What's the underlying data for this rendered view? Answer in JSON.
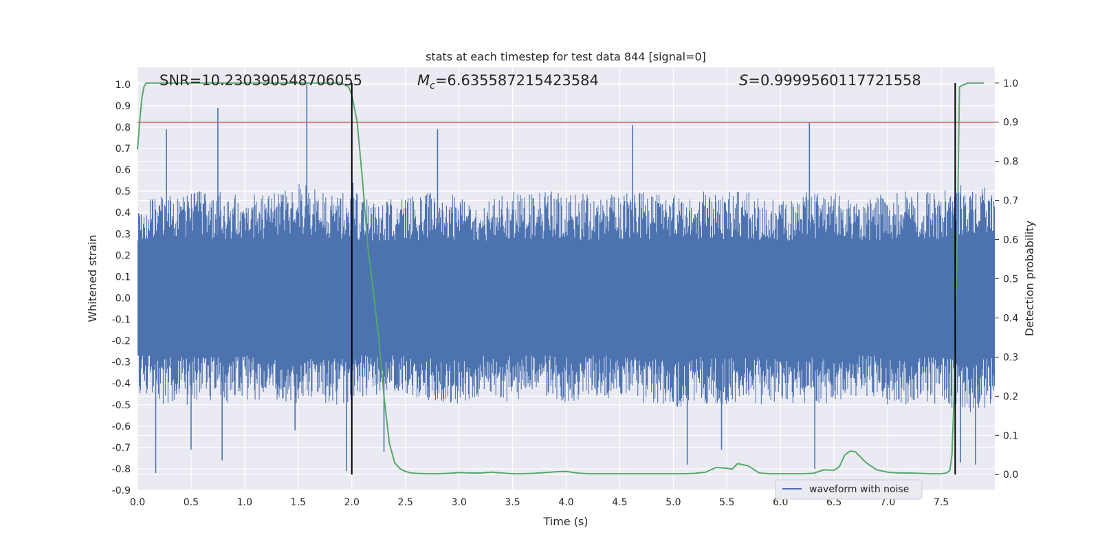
{
  "chart_data": {
    "type": "line",
    "title": "stats at each timestep for test data 844 [signal=0]",
    "xlabel": "Time (s)",
    "ylabel": "Whitened strain",
    "y2label": "Detection probability",
    "xlim": [
      0.0,
      8.0
    ],
    "ylim": [
      -0.9,
      1.08
    ],
    "y2lim": [
      -0.04,
      1.04
    ],
    "x_ticks": [
      "0.0",
      "0.5",
      "1.0",
      "1.5",
      "2.0",
      "2.5",
      "3.0",
      "3.5",
      "4.0",
      "4.5",
      "5.0",
      "5.5",
      "6.0",
      "6.5",
      "7.0",
      "7.5"
    ],
    "y_ticks": [
      "-0.9",
      "-0.8",
      "-0.7",
      "-0.6",
      "-0.5",
      "-0.4",
      "-0.3",
      "-0.2",
      "-0.1",
      "0.0",
      "0.1",
      "0.2",
      "0.3",
      "0.4",
      "0.5",
      "0.6",
      "0.7",
      "0.8",
      "0.9",
      "1.0"
    ],
    "y2_ticks": [
      "0.0",
      "0.1",
      "0.2",
      "0.3",
      "0.4",
      "0.5",
      "0.6",
      "0.7",
      "0.8",
      "0.9",
      "1.0"
    ],
    "grid": true,
    "annotations": {
      "snr": "SNR=10.230390548706055",
      "mc_symbol": "M",
      "mc_sub": "c",
      "mc_value": "=6.635587215423584",
      "s_symbol": "S",
      "s_value": "=0.9999560117721558"
    },
    "legend": {
      "placement": "lower-right",
      "entries": [
        "waveform with noise"
      ]
    },
    "threshold_prob": 0.9,
    "vertical_lines_x": [
      2.0,
      7.63
    ],
    "waveform_envelope": {
      "x": [
        0.0,
        0.25,
        0.5,
        0.75,
        1.0,
        1.25,
        1.5,
        1.75,
        2.0,
        2.25,
        2.5,
        2.75,
        3.0,
        3.25,
        3.5,
        3.75,
        4.0,
        4.25,
        4.5,
        4.75,
        5.0,
        5.25,
        5.5,
        5.75,
        6.0,
        6.25,
        6.5,
        6.75,
        7.0,
        7.25,
        7.5,
        7.75,
        8.0
      ],
      "typical_max": [
        0.45,
        0.5,
        0.5,
        0.5,
        0.48,
        0.5,
        0.55,
        0.5,
        0.5,
        0.45,
        0.48,
        0.5,
        0.48,
        0.45,
        0.5,
        0.5,
        0.5,
        0.48,
        0.5,
        0.5,
        0.48,
        0.5,
        0.5,
        0.5,
        0.45,
        0.5,
        0.5,
        0.45,
        0.5,
        0.5,
        0.5,
        0.55,
        0.55
      ],
      "typical_min": [
        -0.45,
        -0.5,
        -0.5,
        -0.5,
        -0.48,
        -0.5,
        -0.5,
        -0.5,
        -0.5,
        -0.45,
        -0.45,
        -0.5,
        -0.5,
        -0.45,
        -0.5,
        -0.45,
        -0.5,
        -0.45,
        -0.5,
        -0.5,
        -0.55,
        -0.5,
        -0.5,
        -0.5,
        -0.5,
        -0.5,
        -0.5,
        -0.45,
        -0.5,
        -0.5,
        -0.5,
        -0.55,
        -0.5
      ]
    },
    "waveform_peaks": [
      {
        "x": 0.17,
        "y": -0.82
      },
      {
        "x": 0.27,
        "y": 0.79
      },
      {
        "x": 0.5,
        "y": -0.71
      },
      {
        "x": 0.75,
        "y": 0.89
      },
      {
        "x": 0.79,
        "y": -0.76
      },
      {
        "x": 1.58,
        "y": 1.0
      },
      {
        "x": 1.47,
        "y": -0.62
      },
      {
        "x": 1.95,
        "y": -0.81
      },
      {
        "x": 2.01,
        "y": 0.54
      },
      {
        "x": 2.3,
        "y": -0.72
      },
      {
        "x": 2.8,
        "y": 0.79
      },
      {
        "x": 4.62,
        "y": 0.81
      },
      {
        "x": 5.13,
        "y": -0.78
      },
      {
        "x": 5.45,
        "y": -0.71
      },
      {
        "x": 6.27,
        "y": 0.82
      },
      {
        "x": 6.32,
        "y": -0.8
      },
      {
        "x": 7.68,
        "y": -0.77
      },
      {
        "x": 7.82,
        "y": -0.78
      }
    ],
    "series": [
      {
        "name": "waveform with noise",
        "color": "#4c72b0"
      },
      {
        "color": "#55a868",
        "x": [
          0.0,
          0.02,
          0.04,
          0.06,
          0.08,
          0.1,
          0.2,
          0.5,
          1.0,
          1.5,
          1.9,
          1.97,
          2.0,
          2.05,
          2.1,
          2.15,
          2.2,
          2.25,
          2.3,
          2.35,
          2.4,
          2.45,
          2.5,
          2.55,
          2.6,
          2.7,
          2.8,
          2.9,
          3.0,
          3.1,
          3.2,
          3.3,
          3.4,
          3.5,
          3.6,
          3.7,
          3.8,
          3.9,
          4.0,
          4.1,
          4.2,
          4.3,
          4.4,
          4.5,
          4.6,
          4.7,
          4.8,
          4.9,
          5.0,
          5.1,
          5.2,
          5.3,
          5.4,
          5.5,
          5.55,
          5.6,
          5.7,
          5.8,
          5.9,
          6.0,
          6.1,
          6.2,
          6.3,
          6.35,
          6.4,
          6.5,
          6.55,
          6.6,
          6.65,
          6.7,
          6.8,
          6.9,
          7.0,
          7.1,
          7.2,
          7.3,
          7.4,
          7.5,
          7.55,
          7.58,
          7.6,
          7.62,
          7.63,
          7.65,
          7.67,
          7.7,
          7.75,
          7.8,
          7.9
        ],
        "values": [
          0.83,
          0.9,
          0.96,
          0.99,
          1.0,
          1.0,
          1.0,
          1.0,
          1.0,
          1.0,
          1.0,
          0.99,
          0.97,
          0.9,
          0.75,
          0.58,
          0.47,
          0.35,
          0.2,
          0.08,
          0.03,
          0.015,
          0.008,
          0.004,
          0.003,
          0.002,
          0.002,
          0.003,
          0.005,
          0.004,
          0.004,
          0.006,
          0.004,
          0.002,
          0.002,
          0.003,
          0.005,
          0.007,
          0.008,
          0.004,
          0.002,
          0.002,
          0.002,
          0.002,
          0.002,
          0.002,
          0.002,
          0.002,
          0.002,
          0.002,
          0.003,
          0.006,
          0.018,
          0.016,
          0.014,
          0.028,
          0.022,
          0.004,
          0.002,
          0.002,
          0.002,
          0.002,
          0.003,
          0.007,
          0.012,
          0.011,
          0.02,
          0.05,
          0.06,
          0.058,
          0.03,
          0.012,
          0.006,
          0.004,
          0.004,
          0.003,
          0.002,
          0.002,
          0.004,
          0.01,
          0.05,
          0.2,
          0.35,
          0.6,
          0.99,
          0.995,
          1.0,
          1.0,
          1.0
        ]
      },
      {
        "color": "#c44e52"
      },
      {
        "color": "#000000"
      }
    ]
  }
}
